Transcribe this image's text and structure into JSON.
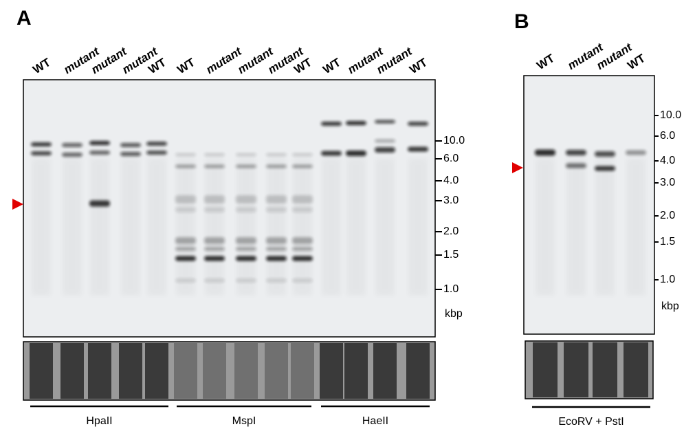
{
  "panels": [
    {
      "label": "A",
      "lanes": [
        "WT",
        "mutant",
        "mutant",
        "mutant",
        "WT",
        "WT",
        "mutant",
        "mutant",
        "mutant",
        "WT",
        "WT",
        "mutant",
        "mutant",
        "WT"
      ],
      "markers": [
        "10.0",
        "6.0",
        "4.0",
        "3.0",
        "2.0",
        "1.5",
        "1.0"
      ],
      "unit": "kbp",
      "enzymes": [
        "HpaII",
        "MspI",
        "HaeII"
      ]
    },
    {
      "label": "B",
      "lanes": [
        "WT",
        "mutant",
        "mutant",
        "WT"
      ],
      "markers": [
        "10.0",
        "6.0",
        "4.0",
        "3.0",
        "2.0",
        "1.5",
        "1.0"
      ],
      "unit": "kbp",
      "enzymes": [
        "EcoRV + PstI"
      ]
    }
  ]
}
